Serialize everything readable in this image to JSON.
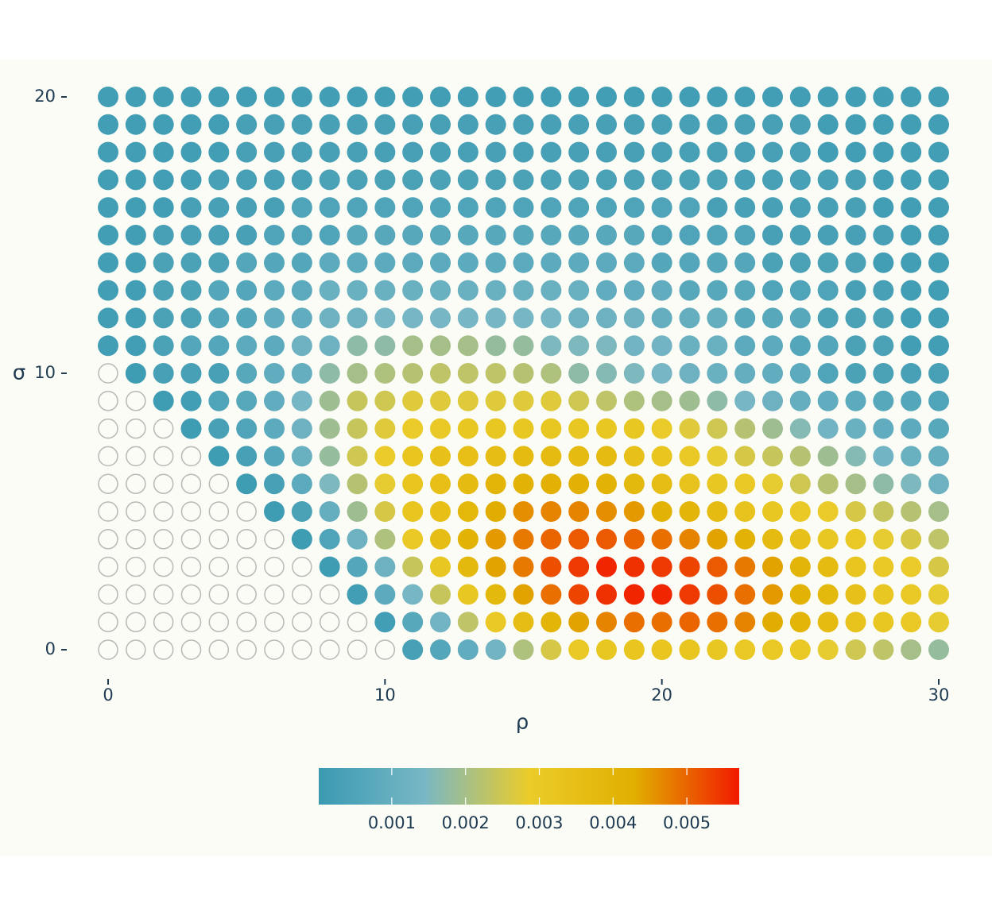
{
  "chart_data": {
    "type": "dot-heatmap",
    "x_label": "ρ",
    "y_label": "σ",
    "x": [
      0,
      1,
      2,
      3,
      4,
      5,
      6,
      7,
      8,
      9,
      10,
      11,
      12,
      13,
      14,
      15,
      16,
      17,
      18,
      19,
      20,
      21,
      22,
      23,
      24,
      25,
      26,
      27,
      28,
      29,
      30
    ],
    "y": [
      0,
      1,
      2,
      3,
      4,
      5,
      6,
      7,
      8,
      9,
      10,
      11,
      12,
      13,
      14,
      15,
      16,
      17,
      18,
      19,
      20
    ],
    "xlim": [
      0,
      30
    ],
    "ylim": [
      0,
      20
    ],
    "xticks": [
      0,
      10,
      20,
      30
    ],
    "yticks": [
      0,
      10,
      20
    ],
    "colorbar": {
      "limits": [
        1e-05,
        0.00571
      ],
      "ticks": [
        0.001,
        0.002,
        0.003,
        0.004,
        0.005
      ],
      "colors": [
        "#3A9AB2",
        "#78B7C5",
        "#EBCC2A",
        "#E1AF00",
        "#F21A00"
      ]
    },
    "values": [
      [
        null,
        null,
        null,
        null,
        null,
        null,
        null,
        null,
        null,
        null,
        null,
        0.0003,
        0.0006,
        0.0009,
        0.0013,
        0.0021,
        0.0026,
        0.003,
        0.0031,
        0.0032,
        0.0032,
        0.0032,
        0.0031,
        0.003,
        0.003,
        0.003,
        0.0028,
        0.0025,
        0.0023,
        0.002,
        0.0018
      ],
      [
        null,
        null,
        null,
        null,
        null,
        null,
        null,
        null,
        null,
        null,
        0.0002,
        0.0007,
        0.0013,
        0.0023,
        0.003,
        0.0036,
        0.004,
        0.0044,
        0.0047,
        0.0049,
        0.0049,
        0.005,
        0.0049,
        0.0047,
        0.0043,
        0.004,
        0.0037,
        0.0033,
        0.0031,
        0.003,
        0.0028
      ],
      [
        null,
        null,
        null,
        null,
        null,
        null,
        null,
        null,
        null,
        0.0002,
        0.0008,
        0.0014,
        0.0024,
        0.0031,
        0.0038,
        0.0044,
        0.0049,
        0.0053,
        0.0055,
        0.0056,
        0.0056,
        0.0054,
        0.0052,
        0.0049,
        0.0045,
        0.0041,
        0.0038,
        0.0034,
        0.0031,
        0.003,
        0.0028
      ],
      [
        null,
        null,
        null,
        null,
        null,
        null,
        null,
        null,
        0.0001,
        0.0006,
        0.0012,
        0.0024,
        0.0031,
        0.0038,
        0.0044,
        0.0048,
        0.0052,
        0.0054,
        0.0056,
        0.0055,
        0.0054,
        0.0053,
        0.0051,
        0.0048,
        0.0044,
        0.004,
        0.0037,
        0.0032,
        0.003,
        0.0029,
        0.0026
      ],
      [
        null,
        null,
        null,
        null,
        null,
        null,
        null,
        0.0001,
        0.0005,
        0.0012,
        0.0021,
        0.003,
        0.0036,
        0.0041,
        0.0045,
        0.0048,
        0.005,
        0.0051,
        0.0051,
        0.005,
        0.0049,
        0.0047,
        0.0044,
        0.0041,
        0.0037,
        0.0034,
        0.0031,
        0.003,
        0.0028,
        0.0026,
        0.0023
      ],
      [
        null,
        null,
        null,
        null,
        null,
        null,
        0.0001,
        0.0004,
        0.001,
        0.0019,
        0.0026,
        0.0032,
        0.0035,
        0.0039,
        0.0043,
        0.0046,
        0.0047,
        0.0047,
        0.0046,
        0.0045,
        0.0041,
        0.004,
        0.0037,
        0.0033,
        0.0031,
        0.003,
        0.0029,
        0.0026,
        0.0024,
        0.0022,
        0.002
      ],
      [
        null,
        null,
        null,
        null,
        null,
        0.0001,
        0.0003,
        0.0008,
        0.0015,
        0.0022,
        0.0028,
        0.0032,
        0.0035,
        0.0037,
        0.004,
        0.0041,
        0.0042,
        0.0042,
        0.0041,
        0.0038,
        0.0036,
        0.0033,
        0.0031,
        0.003,
        0.0028,
        0.0025,
        0.0022,
        0.002,
        0.0017,
        0.0015,
        0.0012
      ],
      [
        null,
        null,
        null,
        null,
        0.0001,
        0.0003,
        0.0006,
        0.0011,
        0.0018,
        0.0025,
        0.0029,
        0.0032,
        0.0034,
        0.0035,
        0.0036,
        0.0037,
        0.0037,
        0.0037,
        0.0037,
        0.0034,
        0.0032,
        0.003,
        0.0028,
        0.0026,
        0.0024,
        0.0022,
        0.0019,
        0.0016,
        0.0013,
        0.0011,
        0.001
      ],
      [
        null,
        null,
        null,
        0.0001,
        0.0003,
        0.0005,
        0.0008,
        0.0012,
        0.0019,
        0.0024,
        0.0027,
        0.0029,
        0.003,
        0.0031,
        0.0031,
        0.0031,
        0.0031,
        0.0031,
        0.0031,
        0.0031,
        0.0029,
        0.0027,
        0.0025,
        0.0022,
        0.0019,
        0.0016,
        0.0013,
        0.0011,
        0.0009,
        0.0008,
        0.0007
      ],
      [
        null,
        null,
        0.0001,
        0.0002,
        0.0005,
        0.0007,
        0.0009,
        0.0014,
        0.0019,
        0.0024,
        0.0025,
        0.0027,
        0.0027,
        0.0027,
        0.0027,
        0.0027,
        0.0027,
        0.0025,
        0.0023,
        0.0021,
        0.002,
        0.0019,
        0.0017,
        0.0014,
        0.0012,
        0.001,
        0.0009,
        0.0008,
        0.0007,
        0.0006,
        0.0005
      ],
      [
        null,
        0.0001,
        0.0003,
        0.0003,
        0.0003,
        0.0007,
        0.0009,
        0.001,
        0.0017,
        0.002,
        0.0021,
        0.0022,
        0.0023,
        0.0023,
        0.0023,
        0.0022,
        0.0021,
        0.0017,
        0.0016,
        0.0015,
        0.0014,
        0.0012,
        0.0011,
        0.001,
        0.0009,
        0.0008,
        0.0005,
        0.0004,
        0.0004,
        0.0003,
        0.0003
      ],
      [
        0.0002,
        0.0002,
        0.0004,
        0.0006,
        0.0006,
        0.0008,
        0.0008,
        0.0012,
        0.0012,
        0.0017,
        0.0017,
        0.002,
        0.002,
        0.002,
        0.0018,
        0.0018,
        0.0015,
        0.0015,
        0.0015,
        0.0013,
        0.0013,
        0.0011,
        0.0011,
        0.0008,
        0.0008,
        0.0006,
        0.0006,
        0.0004,
        0.0004,
        0.0002,
        0.0002
      ],
      [
        0.0002,
        0.0002,
        0.0004,
        0.0004,
        0.0006,
        0.0006,
        0.0009,
        0.0009,
        0.0012,
        0.0012,
        0.0014,
        0.0014,
        0.0014,
        0.0014,
        0.0014,
        0.0014,
        0.0014,
        0.0012,
        0.0012,
        0.0012,
        0.001,
        0.001,
        0.001,
        0.0007,
        0.0007,
        0.0007,
        0.0004,
        0.0004,
        0.0004,
        0.0002,
        0.0002
      ],
      [
        0.0002,
        0.0002,
        0.0004,
        0.0004,
        0.0006,
        0.0006,
        0.0008,
        0.0008,
        0.0011,
        0.0011,
        0.0011,
        0.0011,
        0.0011,
        0.0011,
        0.0011,
        0.0011,
        0.0011,
        0.0011,
        0.0009,
        0.0009,
        0.0009,
        0.0007,
        0.0007,
        0.0007,
        0.0005,
        0.0005,
        0.0005,
        0.0003,
        0.0003,
        0.0002,
        0.0002
      ],
      [
        0.0002,
        0.0002,
        0.0004,
        0.0004,
        0.0004,
        0.0006,
        0.0006,
        0.0006,
        0.0008,
        0.0008,
        0.0008,
        0.0008,
        0.0008,
        0.0008,
        0.0008,
        0.0008,
        0.0008,
        0.0008,
        0.0008,
        0.0008,
        0.0006,
        0.0006,
        0.0006,
        0.0006,
        0.0004,
        0.0004,
        0.0004,
        0.0004,
        0.0002,
        0.0002,
        0.0002
      ],
      [
        0.0002,
        0.0002,
        0.0003,
        0.0003,
        0.0003,
        0.0003,
        0.0005,
        0.0005,
        0.0005,
        0.0007,
        0.0007,
        0.0007,
        0.0007,
        0.0007,
        0.0007,
        0.0007,
        0.0007,
        0.0007,
        0.0007,
        0.0007,
        0.0005,
        0.0005,
        0.0005,
        0.0005,
        0.0003,
        0.0003,
        0.0003,
        0.0003,
        0.0003,
        0.0002,
        0.0002
      ],
      [
        0.0002,
        0.0002,
        0.0002,
        0.0003,
        0.0003,
        0.0003,
        0.0003,
        0.0005,
        0.0005,
        0.0005,
        0.0005,
        0.0005,
        0.0005,
        0.0005,
        0.0005,
        0.0005,
        0.0005,
        0.0005,
        0.0005,
        0.0005,
        0.0005,
        0.0005,
        0.0003,
        0.0003,
        0.0003,
        0.0003,
        0.0003,
        0.0003,
        0.0002,
        0.0002,
        0.0002
      ],
      [
        0.0002,
        0.0002,
        0.0002,
        0.0002,
        0.0003,
        0.0003,
        0.0003,
        0.0003,
        0.0004,
        0.0004,
        0.0004,
        0.0004,
        0.0004,
        0.0004,
        0.0004,
        0.0004,
        0.0004,
        0.0004,
        0.0004,
        0.0004,
        0.0004,
        0.0004,
        0.0004,
        0.0003,
        0.0003,
        0.0003,
        0.0003,
        0.0003,
        0.0002,
        0.0002,
        0.0002
      ],
      [
        0.0002,
        0.0002,
        0.0002,
        0.0002,
        0.0002,
        0.0003,
        0.0003,
        0.0003,
        0.0003,
        0.0003,
        0.0003,
        0.0003,
        0.0003,
        0.0003,
        0.0003,
        0.0003,
        0.0003,
        0.0003,
        0.0003,
        0.0003,
        0.0003,
        0.0003,
        0.0003,
        0.0003,
        0.0003,
        0.0003,
        0.0002,
        0.0002,
        0.0002,
        0.0002,
        0.0002
      ],
      [
        0.0002,
        0.0002,
        0.0002,
        0.0002,
        0.0002,
        0.0003,
        0.0003,
        0.0003,
        0.0003,
        0.0003,
        0.0003,
        0.0003,
        0.0003,
        0.0003,
        0.0003,
        0.0003,
        0.0003,
        0.0003,
        0.0003,
        0.0003,
        0.0003,
        0.0003,
        0.0003,
        0.0003,
        0.0003,
        0.0003,
        0.0002,
        0.0002,
        0.0002,
        0.0002,
        0.0002
      ],
      [
        0.0002,
        0.0002,
        0.0002,
        0.0002,
        0.0002,
        0.0002,
        0.0002,
        0.0002,
        0.0002,
        0.0002,
        0.0002,
        0.0002,
        0.0002,
        0.0002,
        0.0002,
        0.0002,
        0.0002,
        0.0002,
        0.0002,
        0.0002,
        0.0002,
        0.0002,
        0.0002,
        0.0002,
        0.0002,
        0.0002,
        0.0002,
        0.0002,
        0.0002,
        0.0002,
        0.0002
      ]
    ]
  }
}
